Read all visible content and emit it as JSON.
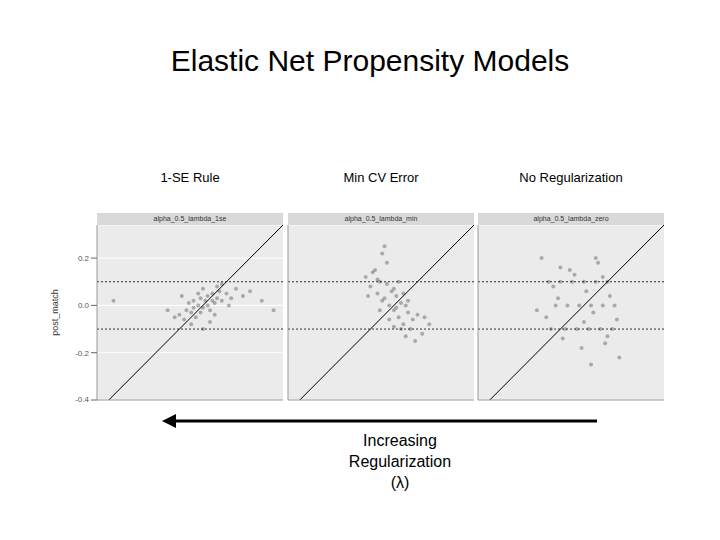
{
  "title": "Elastic Net Propensity Models",
  "annotation": "Increasing Regularization (λ)",
  "chart_data": [
    {
      "type": "scatter",
      "subtitle": "1-SE Rule",
      "title": "alpha_0.5_lambda_1se",
      "ylabel": "post_match",
      "xlim": [
        -0.45,
        0.34
      ],
      "ylim": [
        -0.4,
        0.34
      ],
      "yticks": [
        0.2,
        {
          "value": 0,
          "label": "0.0"
        },
        -0.2,
        -0.4
      ],
      "tick_labels": "y",
      "grid": true,
      "color": "#000000",
      "marker": "circle",
      "hlines": [
        0.1,
        -0.1
      ],
      "abline": {
        "slope": 1,
        "intercept": 0
      },
      "x": [
        -0.12,
        -0.1,
        -0.08,
        -0.07,
        -0.06,
        -0.05,
        -0.04,
        -0.03,
        -0.02,
        -0.01,
        0,
        0.01,
        0.02,
        0.03,
        0.04,
        0.05,
        0.06,
        0.07,
        0.08,
        0.1,
        0.12,
        0.14,
        0.17,
        0.2,
        0.25,
        -0.15,
        -0.05,
        0,
        0.03,
        -0.02,
        0.05,
        0.08,
        -0.09,
        0.02,
        -0.04,
        0.11,
        0.06,
        -0.01,
        0.04,
        0,
        -0.38,
        0.3
      ],
      "values": [
        -0.05,
        -0.04,
        -0.06,
        -0.02,
        0.01,
        -0.03,
        0.02,
        -0.05,
        0,
        0.03,
        -0.01,
        0.02,
        0.04,
        -0.02,
        0.05,
        0.01,
        0.03,
        0.06,
        0.02,
        0.05,
        0.03,
        0.07,
        0.04,
        0.06,
        0.02,
        -0.02,
        -0.08,
        0.07,
        -0.07,
        0.05,
        -0.04,
        0.09,
        0.04,
        0,
        -0.01,
        0,
        0.08,
        -0.03,
        0.02,
        -0.1,
        0.02,
        -0.02
      ]
    },
    {
      "type": "scatter",
      "subtitle": "Min CV Error",
      "title": "alpha_0.5_lambda_min",
      "xlim": [
        -0.45,
        0.34
      ],
      "ylim": [
        -0.4,
        0.34
      ],
      "yticks": [
        0.2,
        {
          "value": 0,
          "label": "0.0"
        },
        -0.2,
        -0.4
      ],
      "tick_labels": false,
      "grid": true,
      "color": "#000000",
      "marker": "circle",
      "hlines": [
        0.1,
        -0.1
      ],
      "abline": {
        "slope": 1,
        "intercept": 0
      },
      "x": [
        -0.12,
        -0.1,
        -0.08,
        -0.07,
        -0.06,
        -0.05,
        -0.04,
        -0.03,
        -0.02,
        -0.01,
        0,
        0.01,
        0.02,
        0.03,
        0.04,
        0.05,
        0.06,
        0.07,
        0.08,
        0.1,
        0.12,
        0.15,
        -0.06,
        -0.03,
        0,
        0.03,
        0.06,
        -0.09,
        -0.02,
        0.02,
        0.05,
        -0.05,
        0.01,
        0.09,
        -0.11,
        0.04,
        -0.07,
        0.13,
        0,
        -0.04
      ],
      "values": [
        0.12,
        0.08,
        0.15,
        0.05,
        0.1,
        0.22,
        0.03,
        0.09,
        0,
        0.06,
        -0.02,
        0.04,
        -0.05,
        0.01,
        -0.08,
        0,
        -0.03,
        -0.1,
        -0.06,
        -0.04,
        -0.12,
        -0.08,
        -0.02,
        0.18,
        0.07,
        -0.1,
        0.02,
        0.14,
        -0.06,
        0.1,
        -0.13,
        0.02,
        -0.01,
        -0.15,
        0.04,
        0.05,
        0.11,
        -0.05,
        -0.09,
        0.25
      ]
    },
    {
      "type": "scatter",
      "subtitle": "No Regularization",
      "title": "alpha_0.5_lambda_zero",
      "xlim": [
        -0.45,
        0.34
      ],
      "ylim": [
        -0.4,
        0.34
      ],
      "yticks": [
        0.2,
        {
          "value": 0,
          "label": "0.0"
        },
        -0.2,
        -0.4
      ],
      "tick_labels": false,
      "grid": true,
      "color": "#000000",
      "marker": "circle",
      "hlines": [
        0.1,
        -0.1
      ],
      "abline": {
        "slope": 1,
        "intercept": 0
      },
      "x": [
        -0.15,
        -0.1,
        -0.05,
        0,
        0.05,
        0.1,
        -0.12,
        -0.07,
        -0.02,
        0.03,
        0.08,
        0.13,
        -0.14,
        -0.08,
        -0.03,
        0.02,
        0.07,
        0.12,
        -0.18,
        -0.1,
        -0.04,
        0.01,
        0.06,
        0.11,
        -0.16,
        -0.09,
        -0.01,
        0.04,
        0.09,
        0.15,
        -0.13,
        -0.06,
        0,
        0.05,
        0.1,
        -0.2,
        -0.11,
        0.03,
        0.08,
        0.14
      ],
      "values": [
        0.1,
        0.1,
        0.1,
        0.1,
        0.1,
        0.1,
        0,
        0,
        0,
        0,
        0,
        0,
        -0.1,
        -0.1,
        -0.1,
        -0.1,
        -0.1,
        -0.1,
        0.2,
        0.16,
        0.13,
        0.06,
        0.18,
        0.04,
        -0.05,
        -0.14,
        -0.18,
        -0.03,
        -0.16,
        -0.22,
        0.08,
        0.15,
        -0.07,
        0.2,
        -0.13,
        -0.02,
        0.03,
        -0.25,
        0.12,
        -0.06
      ]
    }
  ]
}
